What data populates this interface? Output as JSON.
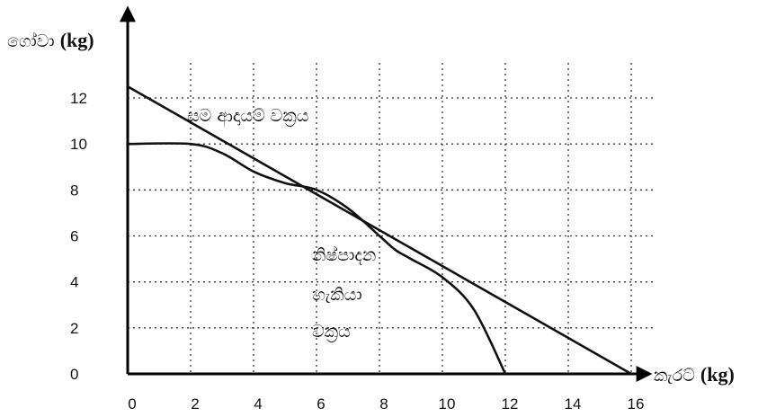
{
  "chart_data": {
    "type": "line",
    "xlabel": "කැරට් (kg)",
    "ylabel": "ගෝවා (kg)",
    "xlim": [
      0,
      16
    ],
    "ylim": [
      0,
      12
    ],
    "x_ticks": [
      "0",
      "2",
      "4",
      "6",
      "8",
      "10",
      "12",
      "14",
      "16"
    ],
    "y_ticks": [
      "0",
      "2",
      "4",
      "6",
      "8",
      "10",
      "12"
    ],
    "grid": true,
    "series": [
      {
        "name": "සම ආදායම් වක්‍රය",
        "x": [
          0,
          16
        ],
        "y": [
          12.5,
          0
        ]
      },
      {
        "name": "නිෂ්පාදන හැකියා වක්‍රය",
        "x": [
          0,
          2,
          3,
          4,
          5,
          6,
          7,
          8,
          8.5,
          9,
          10,
          11,
          12
        ],
        "y": [
          10,
          10,
          9.6,
          8.8,
          8.3,
          8,
          7.2,
          6,
          5.4,
          5,
          4.2,
          2.8,
          0
        ]
      }
    ],
    "annotations": [
      {
        "text": "සම ආදායම් වක්‍රය"
      },
      {
        "lines": [
          "නිෂ්පාදන",
          "හැකියා",
          "වක්‍රය"
        ]
      }
    ]
  }
}
